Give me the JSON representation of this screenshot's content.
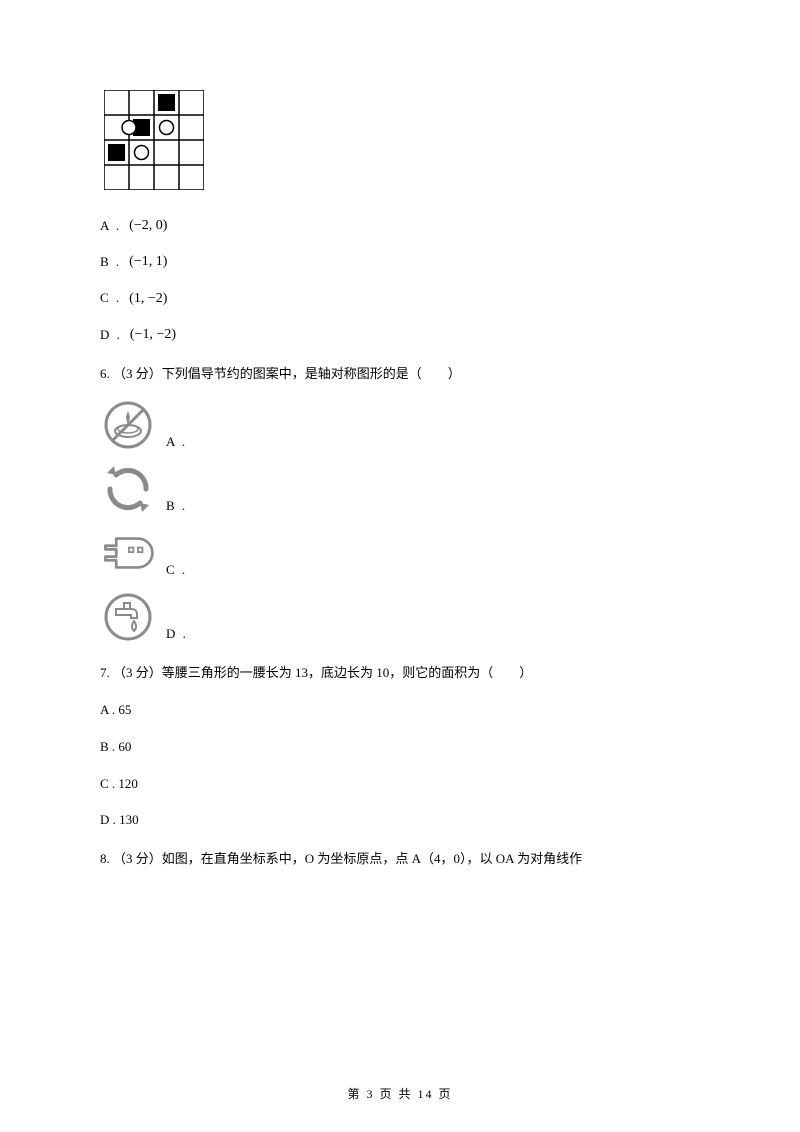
{
  "page": {
    "current": "3",
    "total": "14",
    "footer_prefix": "第",
    "footer_mid": "页 共",
    "footer_suffix": "页"
  },
  "board": {
    "size": 4,
    "cell": 25,
    "line_color": "#000000",
    "bg": "#ffffff",
    "stroke_w": 1.5,
    "black_squares": [
      {
        "col": 2,
        "row": 0
      },
      {
        "col": 1,
        "row": 1
      },
      {
        "col": 0,
        "row": 2
      }
    ],
    "white_circles": [
      {
        "col": 0.5,
        "row": 1
      },
      {
        "col": 2,
        "row": 1
      },
      {
        "col": 1,
        "row": 2
      }
    ],
    "sq_size": 17,
    "circ_r": 7
  },
  "q5_options": {
    "a": {
      "label": "A .",
      "value": "(−2, 0)"
    },
    "b": {
      "label": "B .",
      "value": "(−1, 1)"
    },
    "c": {
      "label": "C .",
      "value": "(1, −2)"
    },
    "d": {
      "label": "D .",
      "value": "(−1, −2)"
    }
  },
  "q6": {
    "text": "6.  （3 分）下列倡导节约的图案中，是轴对称图形的是（　　）",
    "stroke": "#8a8a8a",
    "stroke_w": 2,
    "opts": {
      "a": "A .",
      "b": "B .",
      "c": "C .",
      "d": "D ."
    }
  },
  "q7": {
    "text": "7.  （3 分）等腰三角形的一腰长为 13，底边长为 10，则它的面积为（　　）",
    "opts": {
      "a": {
        "label": "A .",
        "value": "65"
      },
      "b": {
        "label": "B .",
        "value": "60"
      },
      "c": {
        "label": "C .",
        "value": "120"
      },
      "d": {
        "label": "D .",
        "value": "130"
      }
    }
  },
  "q8": {
    "text": "8.  （3 分）如图，在直角坐标系中，O 为坐标原点，点 A（4，0），以 OA 为对角线作"
  }
}
